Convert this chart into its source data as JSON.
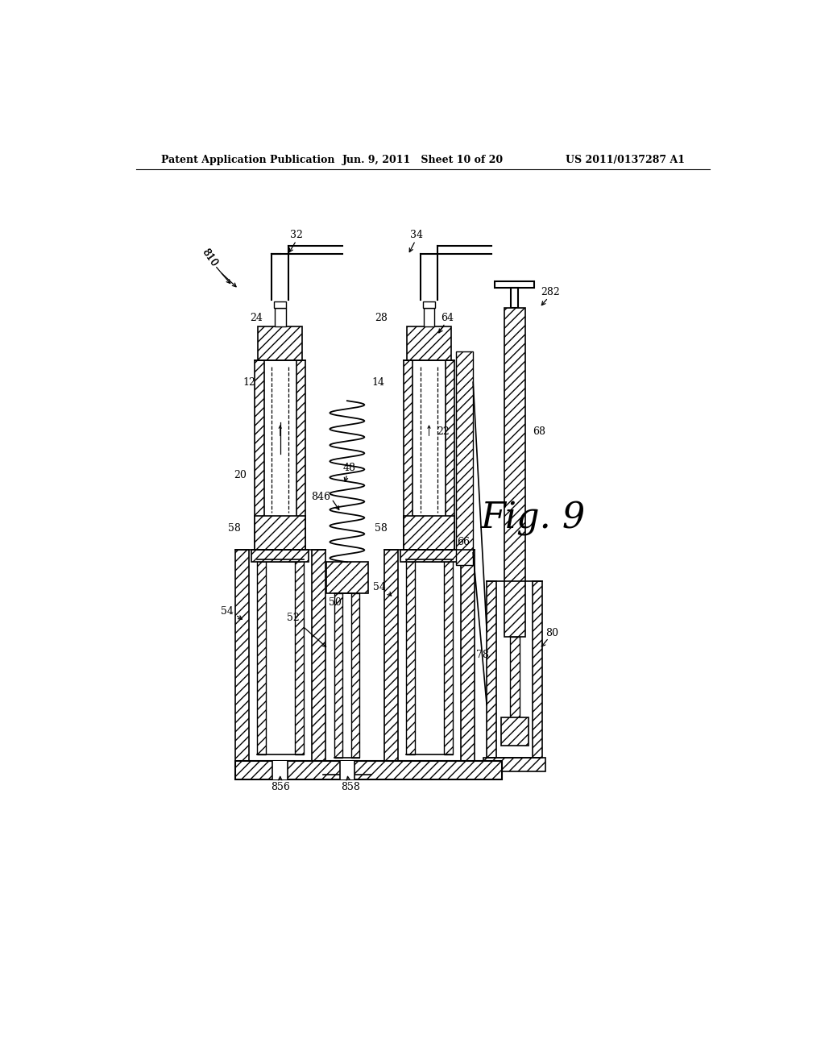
{
  "bg_color": "#ffffff",
  "header_left": "Patent Application Publication",
  "header_center": "Jun. 9, 2011   Sheet 10 of 20",
  "header_right": "US 2011/0137287 A1",
  "fig_label": "Fig. 9"
}
